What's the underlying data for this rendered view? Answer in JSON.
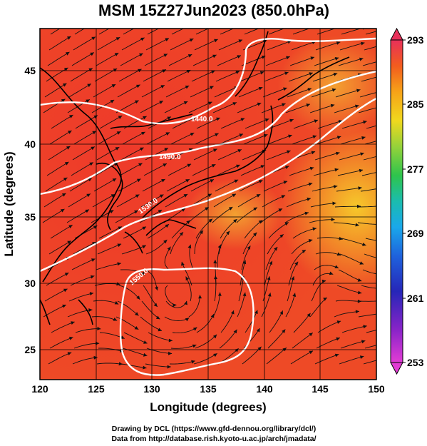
{
  "title": "MSM 15Z27Jun2023 (850.0hPa)",
  "xlabel": "Longitude (degrees)",
  "ylabel": "Latitude  (degrees)",
  "credits": [
    "Drawing by DCL (https://www.gfd-dennou.org/library/dcl/)",
    "Data from http://database.rish.kyoto-u.ac.jp/arch/jmadata/"
  ],
  "map": {
    "lon_range": [
      120,
      150
    ],
    "lat_range": [
      22.4,
      47.6
    ],
    "x_ticks": [
      "120",
      "125",
      "130",
      "135",
      "140",
      "145",
      "150"
    ],
    "y_ticks": [
      "25",
      "30",
      "35",
      "40",
      "45"
    ],
    "shaded_field_range": [
      253,
      293
    ],
    "contour_labels": [
      "1440.0",
      "1490.0",
      "1530.0",
      "1550.0"
    ]
  },
  "colorbar": {
    "ticks": [
      "293",
      "285",
      "277",
      "269",
      "261",
      "253"
    ],
    "colors": [
      "#e8305a",
      "#f25a1e",
      "#f7a016",
      "#f2d21c",
      "#8ed23a",
      "#2ec24a",
      "#19b8a8",
      "#1aa6e8",
      "#1f5fd8",
      "#2424b4",
      "#8020c8",
      "#d42ad8"
    ]
  }
}
